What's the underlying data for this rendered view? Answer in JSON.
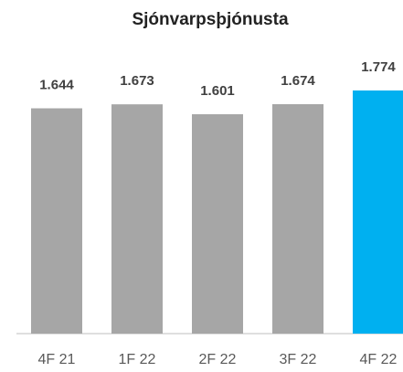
{
  "chart_data": {
    "type": "bar",
    "title": "Sjónvarpsþjónusta",
    "categories": [
      "4F 21",
      "1F 22",
      "2F 22",
      "3F 22",
      "4F 22"
    ],
    "values": [
      1644,
      1673,
      1601,
      1674,
      1774
    ],
    "value_labels": [
      "1.644",
      "1.673",
      "1.601",
      "1.674",
      "1.774"
    ],
    "colors": [
      "#a6a6a6",
      "#a6a6a6",
      "#a6a6a6",
      "#a6a6a6",
      "#00b0f0"
    ]
  }
}
